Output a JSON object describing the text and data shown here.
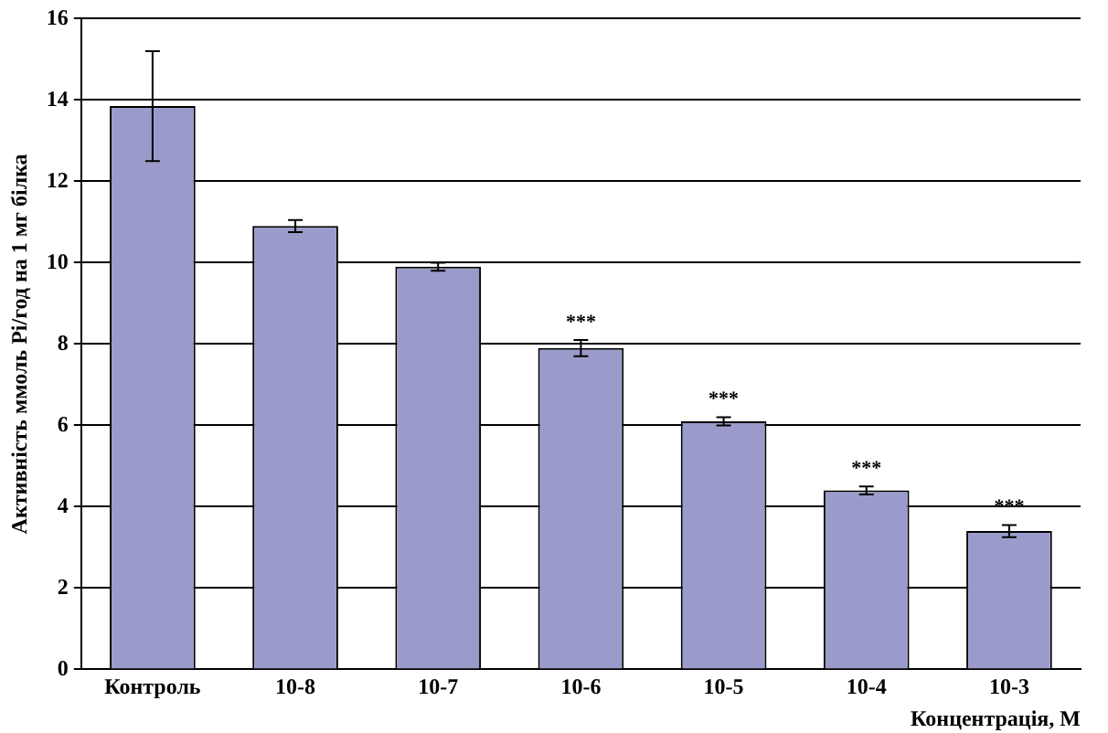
{
  "chart_data": {
    "type": "bar",
    "xlabel": "Концентрація, М",
    "ylabel": "Активність ммоль Pi/год на 1 мг білка",
    "categories": [
      "Контроль",
      "10-8",
      "10-7",
      "10-6",
      "10-5",
      "10-4",
      "10-3"
    ],
    "values": [
      13.85,
      10.9,
      9.9,
      7.9,
      6.1,
      4.4,
      3.4
    ],
    "errors": [
      1.35,
      0.15,
      0.1,
      0.2,
      0.1,
      0.1,
      0.15
    ],
    "color": "#9b9bcb",
    "ylim": [
      0,
      16
    ],
    "yticks": [
      0,
      2,
      4,
      6,
      8,
      10,
      12,
      14,
      16
    ],
    "grid": "y",
    "legend": false,
    "annotations": [
      {
        "text": "***",
        "x": "10-6",
        "y": 8.1
      },
      {
        "text": "***",
        "x": "10-5",
        "y": 6.2
      },
      {
        "text": "***",
        "x": "10-4",
        "y": 4.5
      },
      {
        "text": "***",
        "x": "10-3",
        "y": 3.55
      }
    ]
  }
}
